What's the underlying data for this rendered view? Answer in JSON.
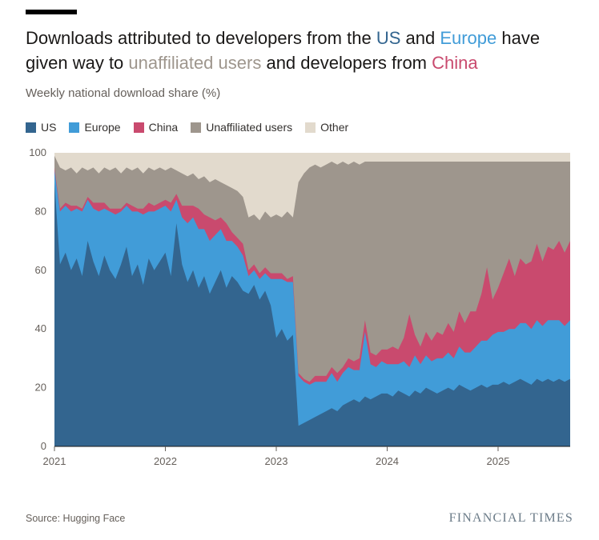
{
  "page": {
    "background": "#ffffff"
  },
  "header": {
    "title_parts": [
      {
        "text": "Downloads attributed to developers from the "
      },
      {
        "text": "US",
        "color": "#33658F"
      },
      {
        "text": " and "
      },
      {
        "text": "Europe",
        "color": "#419CD8"
      },
      {
        "text": " have given way to "
      },
      {
        "text": "unaffiliated users",
        "color": "#9E968D"
      },
      {
        "text": " and developers from "
      },
      {
        "text": "China",
        "color": "#C94A6E"
      }
    ],
    "subtitle": "Weekly national download share (%)"
  },
  "legend": {
    "items": [
      {
        "label": "US",
        "color": "#33658F"
      },
      {
        "label": "Europe",
        "color": "#419CD8"
      },
      {
        "label": "China",
        "color": "#C94A6E"
      },
      {
        "label": "Unaffiliated users",
        "color": "#9E968D"
      },
      {
        "label": "Other",
        "color": "#E2DACD"
      }
    ]
  },
  "chart_data": {
    "type": "area",
    "stacked": true,
    "title": "Downloads attributed to developers from the US and Europe have given way to unaffiliated users and developers from China",
    "subtitle": "Weekly national download share (%)",
    "xlabel": "",
    "ylabel": "Weekly national download share (%)",
    "xlim": [
      2021,
      2025.65
    ],
    "ylim": [
      0,
      100
    ],
    "grid": false,
    "legend_position": "top",
    "y_ticks": [
      0,
      20,
      40,
      60,
      80,
      100
    ],
    "x_ticks": [
      {
        "value": 2021,
        "label": "2021"
      },
      {
        "value": 2022,
        "label": "2022"
      },
      {
        "value": 2023,
        "label": "2023"
      },
      {
        "value": 2024,
        "label": "2024"
      },
      {
        "value": 2025,
        "label": "2025"
      }
    ],
    "x_unit": "decimal_year",
    "x": [
      2021.0,
      2021.05,
      2021.1,
      2021.15,
      2021.2,
      2021.25,
      2021.3,
      2021.35,
      2021.4,
      2021.45,
      2021.5,
      2021.55,
      2021.6,
      2021.65,
      2021.7,
      2021.75,
      2021.8,
      2021.85,
      2021.9,
      2021.95,
      2022.0,
      2022.05,
      2022.1,
      2022.15,
      2022.2,
      2022.25,
      2022.3,
      2022.35,
      2022.4,
      2022.45,
      2022.5,
      2022.55,
      2022.6,
      2022.65,
      2022.7,
      2022.75,
      2022.8,
      2022.85,
      2022.9,
      2022.95,
      2023.0,
      2023.05,
      2023.1,
      2023.15,
      2023.2,
      2023.25,
      2023.3,
      2023.35,
      2023.4,
      2023.45,
      2023.5,
      2023.55,
      2023.6,
      2023.65,
      2023.7,
      2023.75,
      2023.8,
      2023.85,
      2023.9,
      2023.95,
      2024.0,
      2024.05,
      2024.1,
      2024.15,
      2024.2,
      2024.25,
      2024.3,
      2024.35,
      2024.4,
      2024.45,
      2024.5,
      2024.55,
      2024.6,
      2024.65,
      2024.7,
      2024.75,
      2024.8,
      2024.85,
      2024.9,
      2024.95,
      2025.0,
      2025.05,
      2025.1,
      2025.15,
      2025.2,
      2025.25,
      2025.3,
      2025.35,
      2025.4,
      2025.45,
      2025.5,
      2025.55,
      2025.6,
      2025.65
    ],
    "series": [
      {
        "name": "US",
        "color": "#33658F",
        "values": [
          90,
          62,
          66,
          60,
          64,
          58,
          70,
          63,
          58,
          65,
          60,
          57,
          62,
          68,
          58,
          62,
          55,
          64,
          60,
          63,
          66,
          58,
          76,
          62,
          56,
          60,
          54,
          58,
          52,
          56,
          60,
          54,
          58,
          56,
          53,
          52,
          55,
          50,
          53,
          48,
          37,
          40,
          36,
          38,
          7,
          8,
          9,
          10,
          11,
          12,
          13,
          12,
          14,
          15,
          16,
          15,
          17,
          16,
          17,
          18,
          18,
          17,
          19,
          18,
          17,
          19,
          18,
          20,
          19,
          18,
          19,
          20,
          19,
          21,
          20,
          19,
          20,
          21,
          20,
          21,
          21,
          22,
          21,
          22,
          23,
          22,
          21,
          23,
          22,
          23,
          22,
          23,
          22,
          23
        ]
      },
      {
        "name": "Europe",
        "color": "#419CD8",
        "values": [
          4,
          18,
          16,
          20,
          17,
          22,
          14,
          18,
          22,
          16,
          20,
          22,
          18,
          14,
          22,
          18,
          24,
          16,
          20,
          18,
          16,
          22,
          8,
          16,
          20,
          18,
          20,
          16,
          18,
          16,
          14,
          16,
          12,
          12,
          12,
          6,
          5,
          7,
          6,
          9,
          20,
          17,
          20,
          18,
          17,
          14,
          12,
          12,
          11,
          10,
          12,
          10,
          11,
          12,
          10,
          11,
          22,
          12,
          10,
          11,
          10,
          11,
          9,
          11,
          10,
          12,
          10,
          11,
          10,
          12,
          11,
          12,
          11,
          13,
          12,
          13,
          14,
          15,
          16,
          17,
          18,
          17,
          19,
          18,
          19,
          20,
          19,
          20,
          19,
          20,
          21,
          20,
          19,
          20
        ]
      },
      {
        "name": "China",
        "color": "#C94A6E",
        "values": [
          1,
          1,
          1,
          2,
          1,
          1,
          1,
          2,
          3,
          2,
          1,
          2,
          1,
          1,
          2,
          1,
          2,
          3,
          2,
          2,
          2,
          3,
          2,
          4,
          6,
          4,
          7,
          5,
          8,
          5,
          4,
          6,
          3,
          3,
          4,
          2,
          2,
          2,
          2,
          2,
          2,
          2,
          1,
          2,
          1,
          1,
          1,
          2,
          2,
          2,
          2,
          3,
          2,
          3,
          3,
          4,
          4,
          4,
          4,
          4,
          5,
          6,
          5,
          8,
          18,
          7,
          6,
          8,
          7,
          9,
          8,
          10,
          9,
          12,
          10,
          14,
          12,
          16,
          25,
          12,
          15,
          20,
          24,
          18,
          22,
          20,
          23,
          26,
          22,
          25,
          24,
          27,
          25,
          27
        ]
      },
      {
        "name": "Unaffiliated users",
        "color": "#9E968D",
        "values": [
          4,
          14,
          11,
          13,
          11,
          14,
          9,
          12,
          10,
          12,
          13,
          14,
          12,
          12,
          12,
          14,
          12,
          12,
          12,
          12,
          10,
          12,
          8,
          11,
          10,
          11,
          10,
          13,
          12,
          14,
          12,
          13,
          15,
          16,
          16,
          18,
          17,
          18,
          19,
          19,
          20,
          19,
          23,
          20,
          65,
          70,
          73,
          72,
          71,
          72,
          70,
          71,
          70,
          66,
          68,
          66,
          54,
          65,
          66,
          64,
          64,
          63,
          64,
          60,
          52,
          59,
          63,
          58,
          61,
          58,
          59,
          55,
          58,
          51,
          55,
          51,
          51,
          45,
          36,
          47,
          43,
          38,
          33,
          39,
          33,
          35,
          34,
          28,
          34,
          29,
          30,
          27,
          31,
          27
        ]
      },
      {
        "name": "Other",
        "color": "#E2DACD",
        "values": [
          1,
          5,
          6,
          5,
          7,
          5,
          6,
          5,
          7,
          5,
          6,
          5,
          7,
          5,
          6,
          5,
          7,
          5,
          6,
          5,
          6,
          5,
          6,
          7,
          8,
          7,
          9,
          8,
          10,
          9,
          10,
          11,
          12,
          13,
          15,
          22,
          21,
          23,
          20,
          22,
          21,
          22,
          20,
          22,
          10,
          7,
          5,
          4,
          5,
          4,
          3,
          4,
          3,
          4,
          3,
          4,
          3,
          3,
          3,
          3,
          3,
          3,
          3,
          3,
          3,
          3,
          3,
          3,
          3,
          3,
          3,
          3,
          3,
          3,
          3,
          3,
          3,
          3,
          3,
          3,
          3,
          3,
          3,
          3,
          3,
          3,
          3,
          3,
          3,
          3,
          3,
          3,
          3,
          3
        ]
      }
    ]
  },
  "footer": {
    "source": "Source: Hugging Face",
    "brand": "FINANCIAL TIMES",
    "brand_color": "#6B7B88"
  }
}
